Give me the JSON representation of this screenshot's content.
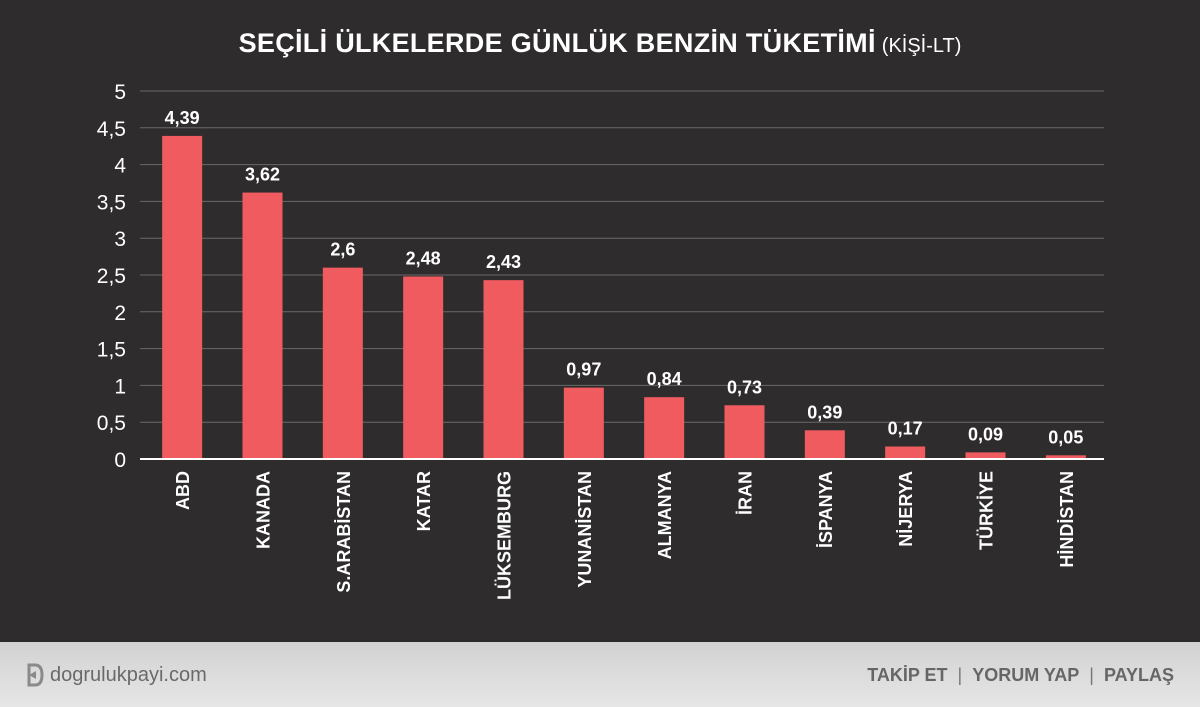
{
  "title": "SEÇİLİ ÜLKELERDE GÜNLÜK BENZİN TÜKETİMİ",
  "title_unit": "(KİŞİ-LT)",
  "colors": {
    "background": "#2e2c2c",
    "bar": "#f05b60",
    "text": "#ffffff",
    "grid": "#6a6868",
    "footer": "#dcdcdc"
  },
  "chart_data": {
    "type": "bar",
    "categories": [
      "ABD",
      "KANADA",
      "S.ARABİSTAN",
      "KATAR",
      "LÜKSEMBURG",
      "YUNANİSTAN",
      "ALMANYA",
      "İRAN",
      "İSPANYA",
      "NİJERYA",
      "TÜRKİYE",
      "HİNDİSTAN"
    ],
    "values": [
      4.39,
      3.62,
      2.6,
      2.48,
      2.43,
      0.97,
      0.84,
      0.73,
      0.39,
      0.17,
      0.09,
      0.05
    ],
    "value_labels": [
      "4,39",
      "3,62",
      "2,6",
      "2,48",
      "2,43",
      "0,97",
      "0,84",
      "0,73",
      "0,39",
      "0,17",
      "0,09",
      "0,05"
    ],
    "y_ticks": [
      0,
      0.5,
      1,
      1.5,
      2,
      2.5,
      3,
      3.5,
      4,
      4.5,
      5
    ],
    "y_tick_labels": [
      "0",
      "0,5",
      "1",
      "1,5",
      "2",
      "2,5",
      "3",
      "3,5",
      "4",
      "4,5",
      "5"
    ],
    "ylim": [
      0,
      5
    ],
    "grid": true,
    "xlabel": "",
    "ylabel": ""
  },
  "footer": {
    "site": "dogrulukpayi.com",
    "logo_icon": "d-logo-icon",
    "actions": [
      "TAKİP ET",
      "YORUM YAP",
      "PAYLAŞ"
    ],
    "separator": "|"
  }
}
